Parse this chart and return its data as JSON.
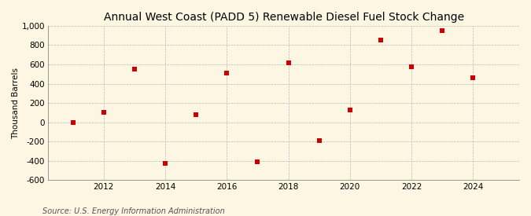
{
  "title": "Annual West Coast (PADD 5) Renewable Diesel Fuel Stock Change",
  "ylabel": "Thousand Barrels",
  "source": "Source: U.S. Energy Information Administration",
  "years": [
    2011,
    2012,
    2013,
    2014,
    2015,
    2016,
    2017,
    2018,
    2019,
    2020,
    2021,
    2022,
    2023,
    2024
  ],
  "values": [
    0,
    100,
    550,
    -430,
    80,
    510,
    -410,
    620,
    -190,
    130,
    855,
    575,
    950,
    465
  ],
  "ylim": [
    -600,
    1000
  ],
  "ytick_values": [
    -600,
    -400,
    -200,
    0,
    200,
    400,
    600,
    800,
    1000
  ],
  "ytick_labels": [
    "-600",
    "-400",
    "-200",
    "0",
    "200",
    "400",
    "600",
    "800",
    "1,000"
  ],
  "xticks": [
    2012,
    2014,
    2016,
    2018,
    2020,
    2022,
    2024
  ],
  "xlim": [
    2010.2,
    2025.5
  ],
  "marker_color": "#cc0000",
  "marker_size": 25,
  "background_color": "#fdf6e3",
  "grid_color": "#aaaaaa",
  "title_fontsize": 10,
  "label_fontsize": 7.5,
  "tick_fontsize": 7.5,
  "source_fontsize": 7
}
